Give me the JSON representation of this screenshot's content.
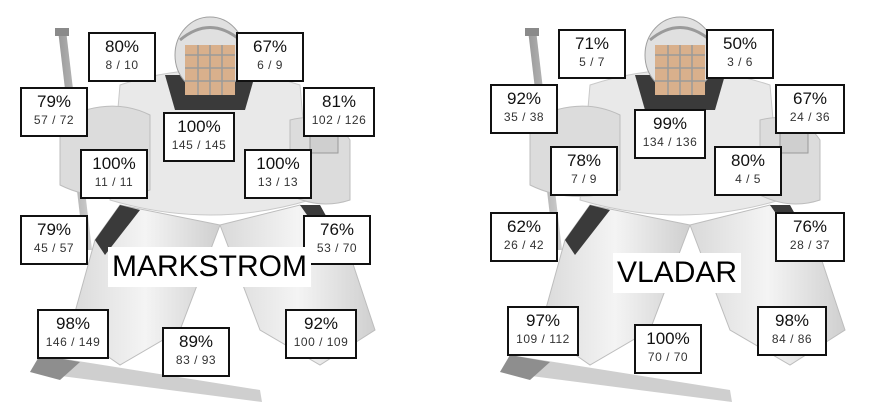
{
  "colors": {
    "box_border": "#111111",
    "gear_light": "#e6e6e6",
    "gear_mid": "#cfcfcf",
    "gear_dark": "#3a3a3a"
  },
  "goalies": [
    {
      "name": "MARKSTROM",
      "zones": {
        "glove_high": {
          "pct": "80%",
          "frac": "8 / 10"
        },
        "blocker_high": {
          "pct": "67%",
          "frac": "6 / 9"
        },
        "glove_shoulder": {
          "pct": "79%",
          "frac": "57 / 72"
        },
        "blocker_shoulder": {
          "pct": "81%",
          "frac": "102 / 126"
        },
        "chest": {
          "pct": "100%",
          "frac": "145 / 145"
        },
        "glove_arm": {
          "pct": "100%",
          "frac": "11 / 11"
        },
        "blocker_arm": {
          "pct": "100%",
          "frac": "13 / 13"
        },
        "glove_mid": {
          "pct": "79%",
          "frac": "45 / 57"
        },
        "blocker_mid": {
          "pct": "76%",
          "frac": "53 / 70"
        },
        "glove_low": {
          "pct": "98%",
          "frac": "146 / 149"
        },
        "five_hole": {
          "pct": "89%",
          "frac": "83 / 93"
        },
        "blocker_low": {
          "pct": "92%",
          "frac": "100 / 109"
        }
      }
    },
    {
      "name": "VLADAR",
      "zones": {
        "glove_high": {
          "pct": "71%",
          "frac": "5 / 7"
        },
        "blocker_high": {
          "pct": "50%",
          "frac": "3 / 6"
        },
        "glove_shoulder": {
          "pct": "92%",
          "frac": "35 / 38"
        },
        "blocker_shoulder": {
          "pct": "67%",
          "frac": "24 / 36"
        },
        "chest": {
          "pct": "99%",
          "frac": "134 / 136"
        },
        "glove_arm": {
          "pct": "78%",
          "frac": "7 / 9"
        },
        "blocker_arm": {
          "pct": "80%",
          "frac": "4 / 5"
        },
        "glove_mid": {
          "pct": "62%",
          "frac": "26 / 42"
        },
        "blocker_mid": {
          "pct": "76%",
          "frac": "28 / 37"
        },
        "glove_low": {
          "pct": "97%",
          "frac": "109 / 112"
        },
        "five_hole": {
          "pct": "100%",
          "frac": "70 / 70"
        },
        "blocker_low": {
          "pct": "98%",
          "frac": "84 / 86"
        }
      }
    }
  ]
}
